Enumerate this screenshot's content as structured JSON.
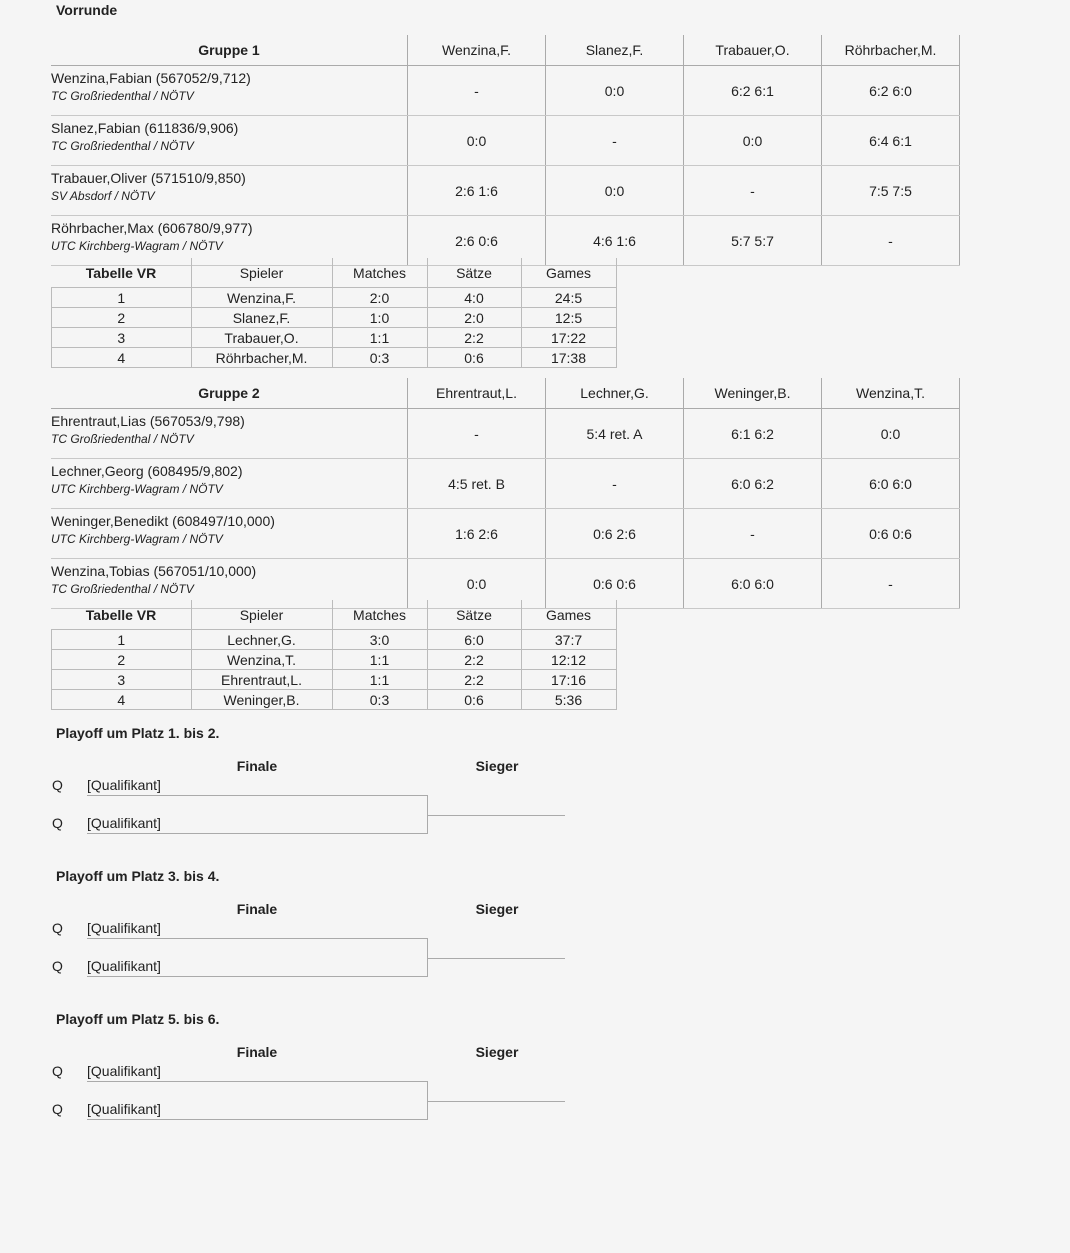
{
  "section_title": "Vorrunde",
  "groups": [
    {
      "title": "Gruppe 1",
      "columns": [
        "Wenzina,F.",
        "Slanez,F.",
        "Trabauer,O.",
        "Röhrbacher,M."
      ],
      "rows": [
        {
          "player": "Wenzina,Fabian (567052/9,712)",
          "club": "TC Großriedenthal / NÖTV",
          "results": [
            "-",
            "0:0",
            "6:2 6:1",
            "6:2 6:0"
          ]
        },
        {
          "player": "Slanez,Fabian (611836/9,906)",
          "club": "TC Großriedenthal / NÖTV",
          "results": [
            "0:0",
            "-",
            "0:0",
            "6:4 6:1"
          ]
        },
        {
          "player": "Trabauer,Oliver (571510/9,850)",
          "club": "SV Absdorf / NÖTV",
          "results": [
            "2:6 1:6",
            "0:0",
            "-",
            "7:5 7:5"
          ]
        },
        {
          "player": "Röhrbacher,Max (606780/9,977)",
          "club": "UTC Kirchberg-Wagram / NÖTV",
          "results": [
            "2:6 0:6",
            "4:6 1:6",
            "5:7 5:7",
            "-"
          ]
        }
      ],
      "standings": {
        "headers": [
          "Tabelle VR",
          "Spieler",
          "Matches",
          "Sätze",
          "Games"
        ],
        "rows": [
          [
            "1",
            "Wenzina,F.",
            "2:0",
            "4:0",
            "24:5"
          ],
          [
            "2",
            "Slanez,F.",
            "1:0",
            "2:0",
            "12:5"
          ],
          [
            "3",
            "Trabauer,O.",
            "1:1",
            "2:2",
            "17:22"
          ],
          [
            "4",
            "Röhrbacher,M.",
            "0:3",
            "0:6",
            "17:38"
          ]
        ]
      }
    },
    {
      "title": "Gruppe 2",
      "columns": [
        "Ehrentraut,L.",
        "Lechner,G.",
        "Weninger,B.",
        "Wenzina,T."
      ],
      "rows": [
        {
          "player": "Ehrentraut,Lias (567053/9,798)",
          "club": "TC Großriedenthal / NÖTV",
          "results": [
            "-",
            "5:4 ret. A",
            "6:1 6:2",
            "0:0"
          ]
        },
        {
          "player": "Lechner,Georg (608495/9,802)",
          "club": "UTC Kirchberg-Wagram / NÖTV",
          "results": [
            "4:5 ret. B",
            "-",
            "6:0 6:2",
            "6:0 6:0"
          ]
        },
        {
          "player": "Weninger,Benedikt (608497/10,000)",
          "club": "UTC Kirchberg-Wagram / NÖTV",
          "results": [
            "1:6 2:6",
            "0:6 2:6",
            "-",
            "0:6 0:6"
          ]
        },
        {
          "player": "Wenzina,Tobias (567051/10,000)",
          "club": "TC Großriedenthal / NÖTV",
          "results": [
            "0:0",
            "0:6 0:6",
            "6:0 6:0",
            "-"
          ]
        }
      ],
      "standings": {
        "headers": [
          "Tabelle VR",
          "Spieler",
          "Matches",
          "Sätze",
          "Games"
        ],
        "rows": [
          [
            "1",
            "Lechner,G.",
            "3:0",
            "6:0",
            "37:7"
          ],
          [
            "2",
            "Wenzina,T.",
            "1:1",
            "2:2",
            "12:12"
          ],
          [
            "3",
            "Ehrentraut,L.",
            "1:1",
            "2:2",
            "17:16"
          ],
          [
            "4",
            "Weninger,B.",
            "0:3",
            "0:6",
            "5:36"
          ]
        ]
      }
    }
  ],
  "playoffs": [
    {
      "title": "Playoff um Platz 1. bis 2.",
      "round": "Finale",
      "winner": "Sieger",
      "entries": [
        {
          "seed": "Q",
          "name": "[Qualifikant]"
        },
        {
          "seed": "Q",
          "name": "[Qualifikant]"
        }
      ]
    },
    {
      "title": "Playoff um Platz 3. bis 4.",
      "round": "Finale",
      "winner": "Sieger",
      "entries": [
        {
          "seed": "Q",
          "name": "[Qualifikant]"
        },
        {
          "seed": "Q",
          "name": "[Qualifikant]"
        }
      ]
    },
    {
      "title": "Playoff um Platz 5. bis 6.",
      "round": "Finale",
      "winner": "Sieger",
      "entries": [
        {
          "seed": "Q",
          "name": "[Qualifikant]"
        },
        {
          "seed": "Q",
          "name": "[Qualifikant]"
        }
      ]
    }
  ]
}
